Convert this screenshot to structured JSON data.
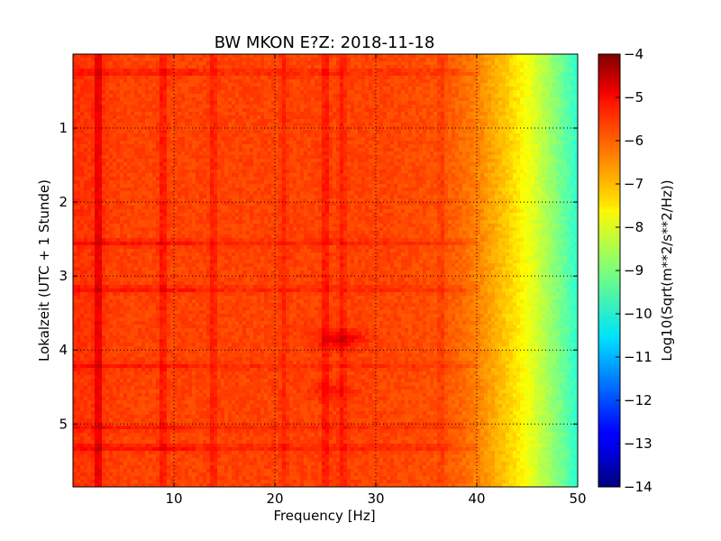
{
  "chart_data": {
    "type": "heatmap",
    "title": "BW MKON E?Z: 2018-11-18",
    "xlabel": "Frequency [Hz]",
    "ylabel": "Lokalzeit (UTC + 1 Stunde)",
    "colorbar_label": "Log10(Sqrt(m**2/s**2/Hz))",
    "xlim": [
      0,
      50
    ],
    "ylim": [
      0,
      5.85
    ],
    "y_inverted": true,
    "x_ticks": [
      10,
      20,
      30,
      40,
      50
    ],
    "x_tick_labels": [
      "10",
      "20",
      "30",
      "40",
      "50"
    ],
    "y_ticks": [
      1,
      2,
      3,
      4,
      5
    ],
    "y_tick_labels": [
      "1",
      "2",
      "3",
      "4",
      "5"
    ],
    "color_range": [
      -14,
      -4
    ],
    "colorbar_ticks": [
      -4,
      -5,
      -6,
      -7,
      -8,
      -9,
      -10,
      -11,
      -12,
      -13,
      -14
    ],
    "colorbar_tick_labels": [
      "−4",
      "−5",
      "−6",
      "−7",
      "−8",
      "−9",
      "−10",
      "−11",
      "−12",
      "−13",
      "−14"
    ],
    "colormap": "jet",
    "grid": true,
    "spectral_profile": {
      "frequencies": [
        0,
        5,
        10,
        20,
        30,
        35,
        38,
        40,
        42,
        44,
        46,
        48,
        50
      ],
      "values": [
        -5.7,
        -5.9,
        -5.9,
        -5.9,
        -5.9,
        -6.0,
        -6.2,
        -6.5,
        -7.0,
        -7.5,
        -8.2,
        -9.0,
        -9.8
      ]
    },
    "vertical_features": [
      {
        "freq": 2.5,
        "delta": 0.9
      },
      {
        "freq": 8.9,
        "delta": 0.5
      },
      {
        "freq": 13.9,
        "delta": 0.4
      },
      {
        "freq": 20.9,
        "delta": 0.3
      },
      {
        "freq": 25.0,
        "delta": 0.5
      },
      {
        "freq": 26.7,
        "delta": 0.4
      },
      {
        "freq": 36.5,
        "delta": 0.3
      }
    ],
    "horizontal_features": [
      {
        "time": 0.25,
        "delta": 0.5
      },
      {
        "time": 2.55,
        "delta": 0.5
      },
      {
        "time": 3.18,
        "delta": 0.5
      },
      {
        "time": 4.22,
        "delta": 0.4
      },
      {
        "time": 5.05,
        "delta": 0.4
      },
      {
        "time": 5.32,
        "delta": 0.6
      }
    ],
    "hotspots": [
      {
        "freq": 26.5,
        "time": 3.85,
        "delta": 0.9
      },
      {
        "freq": 25.5,
        "time": 4.55,
        "delta": 0.4
      }
    ]
  }
}
